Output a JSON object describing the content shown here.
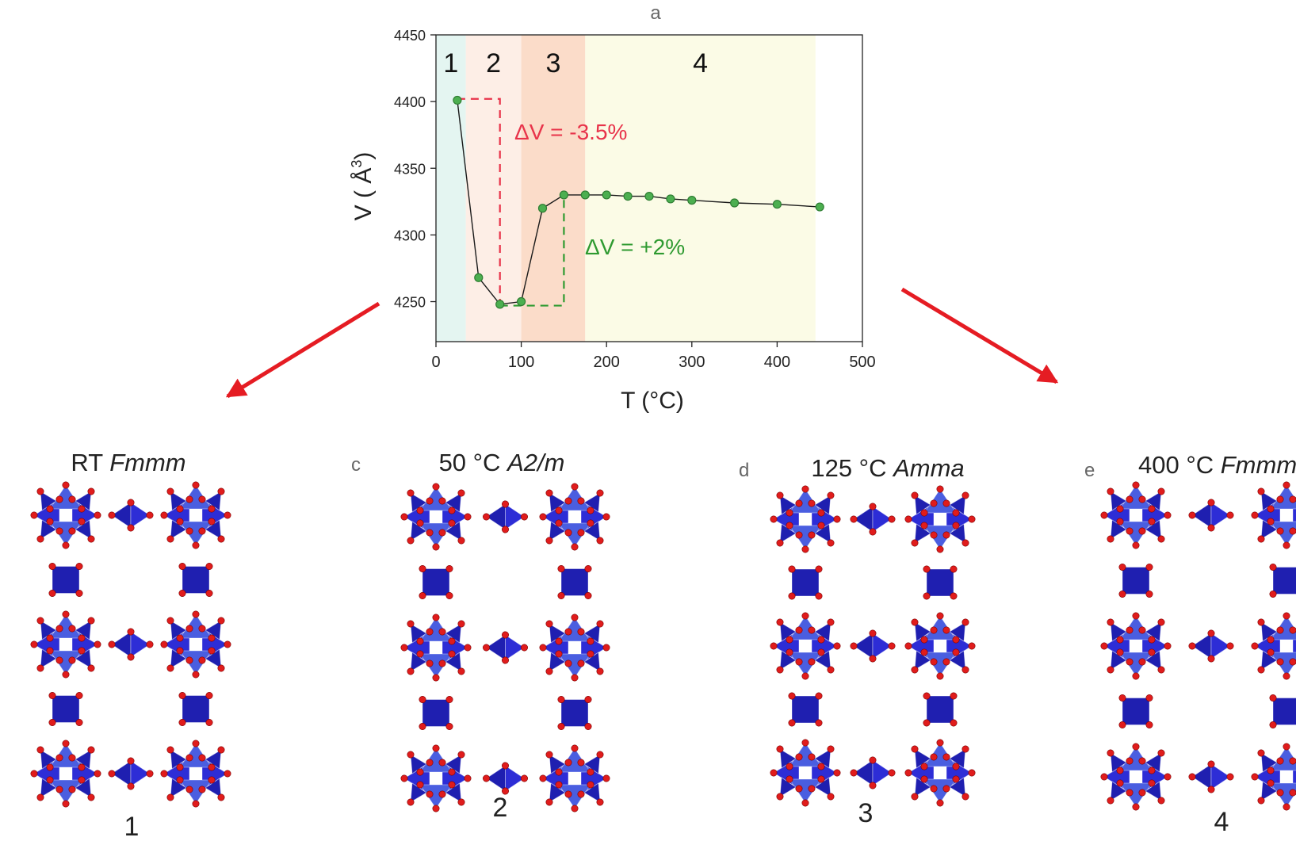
{
  "chart_data": {
    "type": "line",
    "panel_label": "a",
    "xlabel": "T (°C)",
    "ylabel_main": "V ( Å",
    "ylabel_sup": "3",
    "ylabel_close": ")",
    "xlim": [
      0,
      500
    ],
    "ylim": [
      4220,
      4450
    ],
    "xticks": [
      "0",
      "100",
      "200",
      "300",
      "400",
      "500"
    ],
    "yticks": [
      "4250",
      "4300",
      "4350",
      "4400",
      "4450"
    ],
    "grid": false,
    "regions": [
      {
        "label": "1",
        "from": 0,
        "to": 35,
        "color": "#e4f5f1"
      },
      {
        "label": "2",
        "from": 35,
        "to": 100,
        "color": "#fdeee6"
      },
      {
        "label": "3",
        "from": 100,
        "to": 175,
        "color": "#fbdcc9"
      },
      {
        "label": "4",
        "from": 175,
        "to": 445,
        "color": "#fbfbe6"
      }
    ],
    "series": [
      {
        "x": [
          25,
          50,
          75,
          100,
          125,
          150,
          175,
          200,
          225,
          250,
          275,
          300,
          350,
          400,
          450
        ],
        "y": [
          4401,
          4268,
          4248,
          4250,
          4320,
          4330,
          4330,
          4330,
          4329,
          4329,
          4327,
          4326,
          4324,
          4323,
          4321
        ],
        "color": "#2e7d32",
        "marker_fill": "#4caf50"
      }
    ],
    "annotations": [
      {
        "text": "ΔV = -3.5%",
        "color": "#e8334a"
      },
      {
        "text": "ΔV = +2%",
        "color": "#2e9a30"
      }
    ],
    "bracket_minus": {
      "x_from": 25,
      "x_to": 75,
      "y_top": 4402,
      "y_bottom": 4248,
      "color": "#e8334a"
    },
    "bracket_plus": {
      "x_from": 75,
      "x_to": 150,
      "y_top": 4330,
      "y_bottom": 4247,
      "color": "#2e9a30"
    }
  },
  "arrow_color": "#e51c23",
  "structures": [
    {
      "panel": "",
      "caption_prefix": "RT ",
      "caption_italic": "Fmmm",
      "number": "1"
    },
    {
      "panel": "c",
      "caption_prefix": "50 °C ",
      "caption_italic": "A2/m",
      "number": "2"
    },
    {
      "panel": "d",
      "caption_prefix": "125 °C ",
      "caption_italic": "Amma",
      "number": "3"
    },
    {
      "panel": "e",
      "caption_prefix": "400 °C ",
      "caption_italic": "Fmmm",
      "number": "4"
    }
  ],
  "colors": {
    "tetra_dark": "#1f1fb0",
    "tetra_mid": "#2d2dd6",
    "tetra_light": "#4a5ee0",
    "oxygen": "#e01c1c"
  }
}
